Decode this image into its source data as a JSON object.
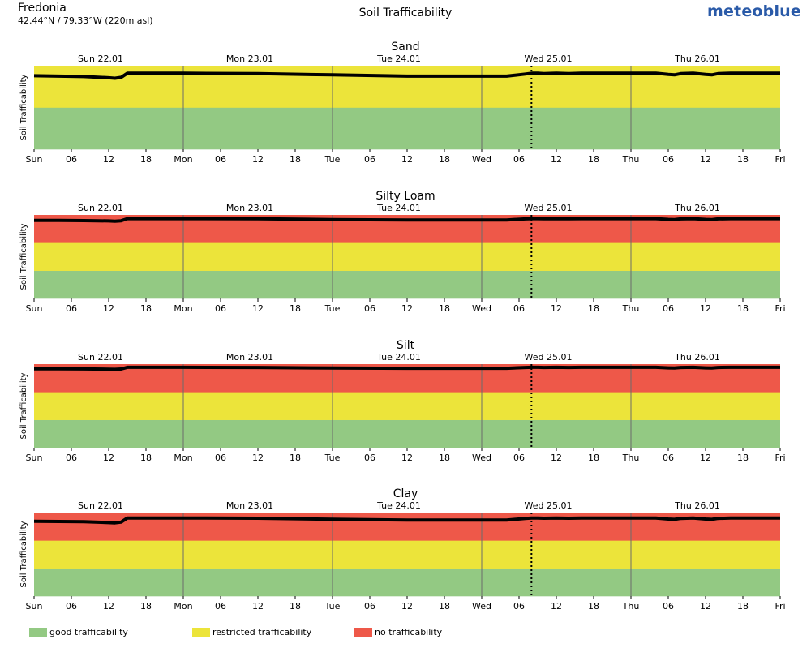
{
  "header": {
    "location": "Fredonia",
    "coordinates": "42.44°N / 79.33°W (220m asl)",
    "title": "Soil Trafficability",
    "brand": "meteoblue"
  },
  "colors": {
    "good": "#93c983",
    "restricted": "#ece43a",
    "none": "#ee5849",
    "line": "#000000",
    "day_divider": "#6b6b6b"
  },
  "legend": [
    {
      "label": "good trafficability",
      "color_key": "good"
    },
    {
      "label": "restricted trafficability",
      "color_key": "restricted"
    },
    {
      "label": "no trafficability",
      "color_key": "none"
    }
  ],
  "chart_data": [
    {
      "type": "line",
      "title": "Sand",
      "ylabel": "Soil Trafficability",
      "bands": [
        "good",
        "restricted"
      ],
      "top_labels": [
        "Sun 22.01",
        "Mon 23.01",
        "Tue 24.01",
        "Wed 25.01",
        "Thu 26.01"
      ],
      "x_ticks": [
        "Sun",
        "06",
        "12",
        "18",
        "Mon",
        "06",
        "12",
        "18",
        "Tue",
        "06",
        "12",
        "18",
        "Wed",
        "06",
        "12",
        "18",
        "Thu",
        "06",
        "12",
        "18",
        "Fri"
      ],
      "now_hour": 80,
      "series": [
        {
          "x": [
            0,
            4,
            8,
            12,
            13,
            14,
            15,
            24,
            36,
            48,
            60,
            72,
            76,
            79,
            80,
            81,
            82,
            84,
            86,
            88,
            92,
            96,
            100,
            102,
            103,
            104,
            106,
            108,
            109,
            110,
            112,
            120
          ],
          "y": [
            0.88,
            0.875,
            0.87,
            0.855,
            0.85,
            0.86,
            0.91,
            0.91,
            0.905,
            0.89,
            0.875,
            0.875,
            0.875,
            0.9,
            0.91,
            0.91,
            0.905,
            0.91,
            0.905,
            0.91,
            0.91,
            0.91,
            0.91,
            0.895,
            0.89,
            0.905,
            0.91,
            0.895,
            0.89,
            0.905,
            0.91,
            0.91
          ]
        }
      ]
    },
    {
      "type": "line",
      "title": "Silty Loam",
      "ylabel": "Soil Trafficability",
      "bands": [
        "good",
        "restricted",
        "none"
      ],
      "top_labels": [
        "Sun 22.01",
        "Mon 23.01",
        "Tue 24.01",
        "Wed 25.01",
        "Thu 26.01"
      ],
      "x_ticks": [
        "Sun",
        "06",
        "12",
        "18",
        "Mon",
        "06",
        "12",
        "18",
        "Tue",
        "06",
        "12",
        "18",
        "Wed",
        "06",
        "12",
        "18",
        "Thu",
        "06",
        "12",
        "18",
        "Fri"
      ],
      "now_hour": 80,
      "series": [
        {
          "x": [
            0,
            4,
            8,
            12,
            13,
            14,
            15,
            24,
            36,
            48,
            60,
            72,
            76,
            79,
            80,
            81,
            82,
            84,
            86,
            88,
            92,
            96,
            100,
            102,
            103,
            104,
            106,
            108,
            109,
            110,
            112,
            120
          ],
          "y": [
            0.935,
            0.935,
            0.932,
            0.928,
            0.925,
            0.93,
            0.955,
            0.955,
            0.953,
            0.945,
            0.94,
            0.94,
            0.94,
            0.952,
            0.955,
            0.955,
            0.953,
            0.955,
            0.953,
            0.955,
            0.955,
            0.955,
            0.955,
            0.947,
            0.945,
            0.952,
            0.955,
            0.947,
            0.945,
            0.952,
            0.955,
            0.955
          ]
        }
      ]
    },
    {
      "type": "line",
      "title": "Silt",
      "ylabel": "Soil Trafficability",
      "bands": [
        "good",
        "restricted",
        "none"
      ],
      "top_labels": [
        "Sun 22.01",
        "Mon 23.01",
        "Tue 24.01",
        "Wed 25.01",
        "Thu 26.01"
      ],
      "x_ticks": [
        "Sun",
        "06",
        "12",
        "18",
        "Mon",
        "06",
        "12",
        "18",
        "Tue",
        "06",
        "12",
        "18",
        "Wed",
        "06",
        "12",
        "18",
        "Thu",
        "06",
        "12",
        "18",
        "Fri"
      ],
      "now_hour": 80,
      "series": [
        {
          "x": [
            0,
            4,
            8,
            12,
            13,
            14,
            15,
            24,
            36,
            48,
            60,
            72,
            76,
            79,
            80,
            81,
            82,
            84,
            86,
            88,
            92,
            96,
            100,
            102,
            103,
            104,
            106,
            108,
            109,
            110,
            112,
            120
          ],
          "y": [
            0.945,
            0.945,
            0.943,
            0.94,
            0.938,
            0.942,
            0.962,
            0.962,
            0.96,
            0.953,
            0.95,
            0.95,
            0.95,
            0.96,
            0.962,
            0.962,
            0.96,
            0.962,
            0.96,
            0.962,
            0.962,
            0.962,
            0.962,
            0.955,
            0.953,
            0.96,
            0.962,
            0.955,
            0.953,
            0.96,
            0.962,
            0.962
          ]
        }
      ]
    },
    {
      "type": "line",
      "title": "Clay",
      "ylabel": "Soil Trafficability",
      "bands": [
        "good",
        "restricted",
        "none"
      ],
      "top_labels": [
        "Sun 22.01",
        "Mon 23.01",
        "Tue 24.01",
        "Wed 25.01",
        "Thu 26.01"
      ],
      "x_ticks": [
        "Sun",
        "06",
        "12",
        "18",
        "Mon",
        "06",
        "12",
        "18",
        "Tue",
        "06",
        "12",
        "18",
        "Wed",
        "06",
        "12",
        "18",
        "Thu",
        "06",
        "12",
        "18",
        "Fri"
      ],
      "now_hour": 80,
      "series": [
        {
          "x": [
            0,
            4,
            8,
            12,
            13,
            14,
            15,
            24,
            36,
            48,
            60,
            72,
            76,
            79,
            80,
            81,
            82,
            84,
            86,
            88,
            92,
            96,
            100,
            102,
            103,
            104,
            106,
            108,
            109,
            110,
            112,
            120
          ],
          "y": [
            0.895,
            0.893,
            0.89,
            0.88,
            0.877,
            0.885,
            0.935,
            0.935,
            0.932,
            0.92,
            0.91,
            0.91,
            0.91,
            0.93,
            0.935,
            0.935,
            0.932,
            0.935,
            0.932,
            0.935,
            0.935,
            0.935,
            0.935,
            0.922,
            0.918,
            0.93,
            0.935,
            0.922,
            0.918,
            0.93,
            0.935,
            0.935
          ]
        }
      ]
    }
  ]
}
